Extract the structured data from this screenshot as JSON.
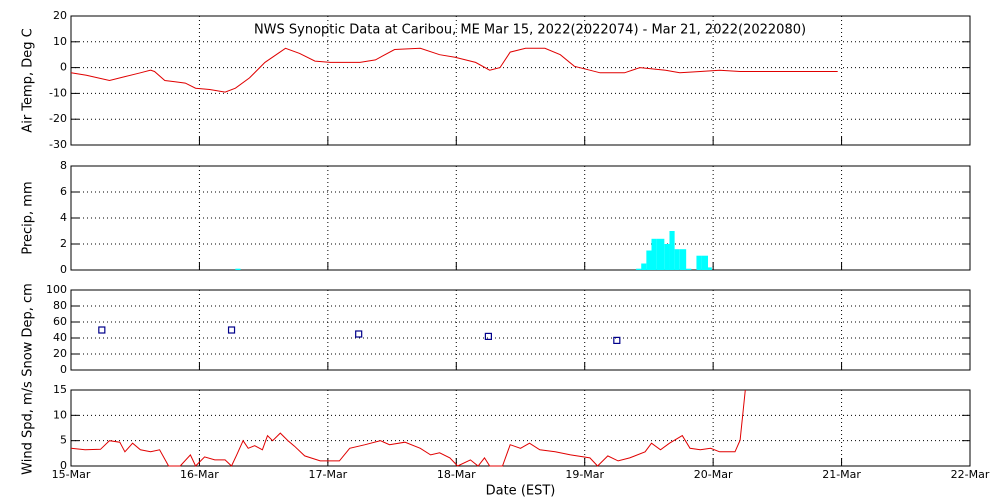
{
  "chart_data": [
    {
      "type": "line",
      "title": "NWS Synoptic Data at Caribou, ME   Mar 15, 2022(2022074) - Mar 21, 2022(2022080)",
      "y_label": "Air Temp, Deg C",
      "xlim": [
        0,
        7
      ],
      "xticks": [
        1,
        2,
        3,
        4,
        5,
        6
      ],
      "ylim": [
        -30,
        20
      ],
      "yticks": [
        -30,
        -20,
        -10,
        0,
        10,
        20
      ],
      "grid": true,
      "color": "#e00000",
      "x": [
        0,
        0.12,
        0.3,
        0.42,
        0.54,
        0.62,
        0.65,
        0.73,
        0.81,
        0.89,
        0.97,
        1.08,
        1.2,
        1.28,
        1.39,
        1.51,
        1.67,
        1.78,
        1.9,
        2.02,
        2.25,
        2.37,
        2.52,
        2.72,
        2.87,
        2.99,
        3.15,
        3.26,
        3.34,
        3.42,
        3.54,
        3.69,
        3.81,
        3.92,
        4.04,
        4.12,
        4.31,
        4.43,
        4.63,
        4.74,
        4.9,
        5.05,
        5.21,
        5.97
      ],
      "values": [
        -2,
        -3,
        -5,
        -3.5,
        -2,
        -1,
        -1.5,
        -5,
        -5.5,
        -6,
        -8,
        -8.5,
        -9.5,
        -8,
        -4,
        2,
        7.5,
        5.5,
        2.5,
        2,
        2,
        3,
        7,
        7.5,
        5,
        4,
        2,
        -1,
        0,
        6,
        7.5,
        7.5,
        5,
        0.5,
        -1,
        -2,
        -2,
        0,
        -1,
        -2,
        -1.5,
        -1,
        -1.5,
        -1.5
      ]
    },
    {
      "type": "histogram",
      "y_label": "Precip, mm",
      "xlim": [
        0,
        7
      ],
      "xticks": [
        1,
        2,
        3,
        4,
        5,
        6
      ],
      "ylim": [
        0,
        8
      ],
      "yticks": [
        0,
        2,
        4,
        6,
        8
      ],
      "grid": true,
      "color": "#00ffff",
      "bins": [
        1.28,
        1.32,
        4.4,
        4.44,
        4.48,
        4.52,
        4.56,
        4.62,
        4.66,
        4.7,
        4.74,
        4.79,
        4.83,
        4.87,
        4.91,
        4.96,
        4.99
      ],
      "values": [
        0.1,
        0,
        0.1,
        0.5,
        1.5,
        2.4,
        2.4,
        2,
        3,
        1.6,
        1.6,
        0.1,
        0,
        1.1,
        1.1,
        0.2
      ]
    },
    {
      "type": "scatter",
      "y_label": "Snow Dep, cm",
      "xlim": [
        0,
        7
      ],
      "xticks": [
        1,
        2,
        3,
        4,
        5,
        6
      ],
      "ylim": [
        0,
        100
      ],
      "yticks": [
        0,
        20,
        40,
        60,
        80,
        100
      ],
      "grid": true,
      "color": "#00008b",
      "x": [
        0.24,
        1.25,
        2.24,
        3.25,
        4.25
      ],
      "values": [
        50,
        50,
        45,
        42,
        37
      ]
    },
    {
      "type": "line",
      "y_label": "Wind Spd, m/s",
      "x_label": "Date (EST)",
      "xlim": [
        0,
        7
      ],
      "xticks": [
        {
          "value": 0,
          "label": "15-Mar"
        },
        {
          "value": 1,
          "label": "16-Mar"
        },
        {
          "value": 2,
          "label": "17-Mar"
        },
        {
          "value": 3,
          "label": "18-Mar"
        },
        {
          "value": 4,
          "label": "19-Mar"
        },
        {
          "value": 5,
          "label": "20-Mar"
        },
        {
          "value": 6,
          "label": "21-Mar"
        },
        {
          "value": 7,
          "label": "22-Mar"
        }
      ],
      "ylim": [
        0,
        15
      ],
      "yticks": [
        0,
        5,
        10,
        15
      ],
      "grid": true,
      "color": "#e00000",
      "x": [
        0,
        0.11,
        0.23,
        0.3,
        0.38,
        0.42,
        0.48,
        0.54,
        0.62,
        0.69,
        0.76,
        0.85,
        0.93,
        0.97,
        1.04,
        1.12,
        1.2,
        1.25,
        1.29,
        1.34,
        1.38,
        1.43,
        1.49,
        1.53,
        1.57,
        1.63,
        1.69,
        1.74,
        1.82,
        1.94,
        2.09,
        2.17,
        2.29,
        2.41,
        2.48,
        2.6,
        2.72,
        2.8,
        2.87,
        2.95,
        3.01,
        3.11,
        3.17,
        3.22,
        3.26,
        3.36,
        3.42,
        3.5,
        3.57,
        3.65,
        3.77,
        3.89,
        4.04,
        4.1,
        4.18,
        4.26,
        4.35,
        4.47,
        4.52,
        4.59,
        4.66,
        4.76,
        4.82,
        4.9,
        4.98,
        5.05,
        5.17,
        5.21,
        5.25
      ],
      "values": [
        3.5,
        3.2,
        3.3,
        5,
        4.7,
        2.8,
        4.5,
        3.2,
        2.8,
        3.2,
        0,
        0,
        2.2,
        0,
        1.8,
        1.2,
        1.2,
        0,
        2.2,
        5,
        3.5,
        4,
        3.2,
        6,
        5,
        6.5,
        5,
        3.9,
        2,
        1,
        1,
        3.5,
        4.2,
        5,
        4.2,
        4.7,
        3.5,
        2.2,
        2.6,
        1.6,
        0,
        1.2,
        0,
        1.6,
        0,
        0,
        4.2,
        3.5,
        4.5,
        3.2,
        2.8,
        2.2,
        1.6,
        0,
        2,
        1,
        1.6,
        2.8,
        4.5,
        3.2,
        4.5,
        6,
        3.5,
        3.2,
        3.5,
        2.8,
        2.8,
        5.1,
        15
      ]
    }
  ]
}
